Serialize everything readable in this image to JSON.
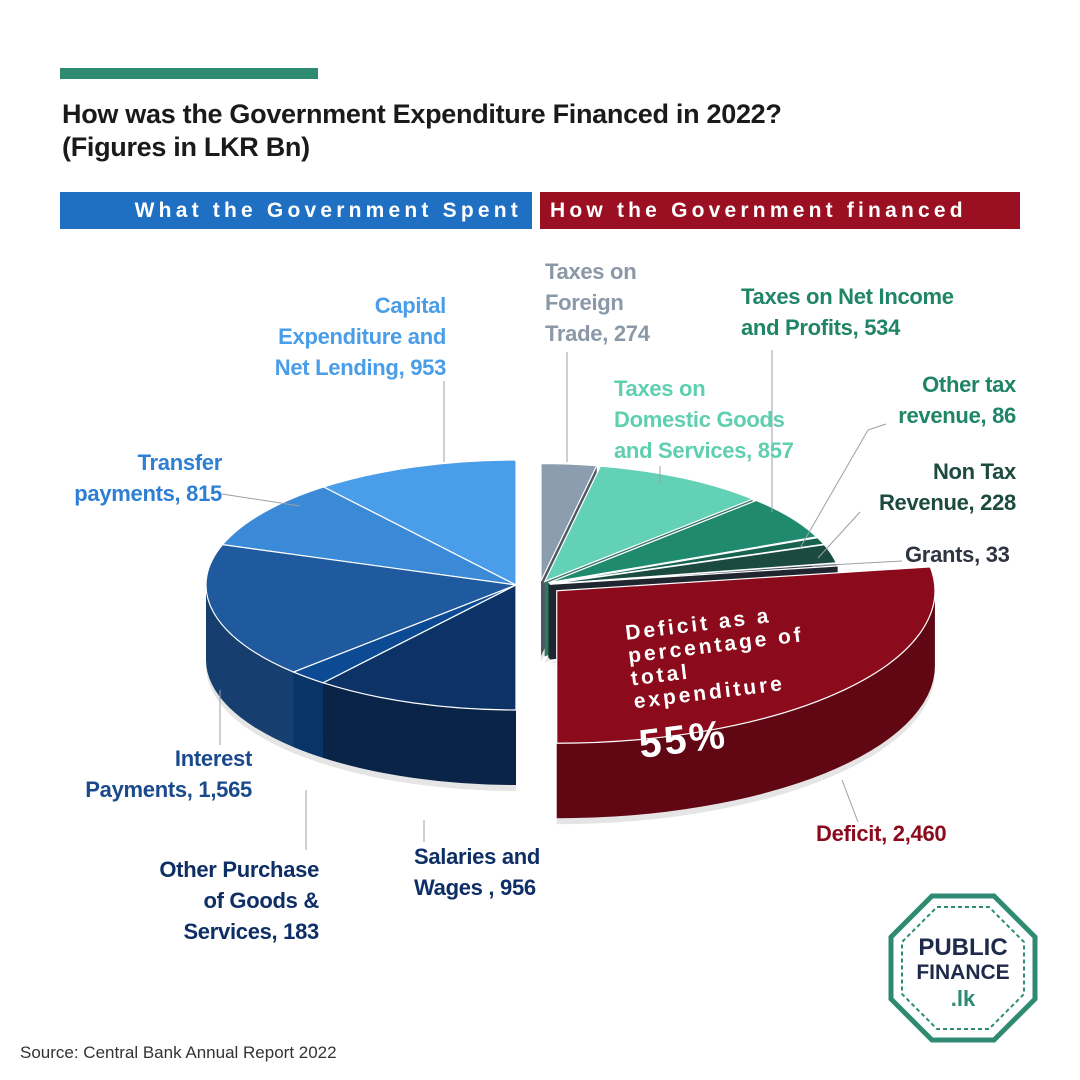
{
  "header": {
    "title_line1": "How was the Government Expenditure Financed in 2022?",
    "title_line2": "(Figures in LKR Bn)"
  },
  "bands": {
    "spent": "What the Government Spent",
    "financed": "How the Government financed"
  },
  "colors": {
    "accent": "#2e8b72",
    "spent_band": "#1f6fc2",
    "financed_band": "#9a0f22"
  },
  "chart_data": {
    "type": "pie",
    "title": "How was the Government Expenditure Financed in 2022?",
    "subtitle": "(Figures in LKR Bn)",
    "unit": "LKR Bn",
    "groups": [
      {
        "name": "What the Government Spent",
        "slices": [
          {
            "label": "Capital Expenditure and Net Lending",
            "value": 953,
            "color": "#4a9de8"
          },
          {
            "label": "Transfer payments",
            "value": 815,
            "color": "#3a8ad8"
          },
          {
            "label": "Interest Payments",
            "value": 1565,
            "color": "#1f5a9e"
          },
          {
            "label": "Other Purchase of Goods & Services",
            "value": 183,
            "color": "#0d4a94"
          },
          {
            "label": "Salaries and Wages",
            "value": 956,
            "color": "#0d3366"
          }
        ]
      },
      {
        "name": "How the Government financed",
        "slices": [
          {
            "label": "Taxes on Foreign Trade",
            "value": 274,
            "color": "#8c9db0"
          },
          {
            "label": "Taxes on Domestic Goods and Services",
            "value": 857,
            "color": "#63d1b6"
          },
          {
            "label": "Taxes on Net Income and Profits",
            "value": 534,
            "color": "#1f8a6d"
          },
          {
            "label": "Other tax revenue",
            "value": 86,
            "color": "#17634f"
          },
          {
            "label": "Non Tax Revenue",
            "value": 228,
            "color": "#1a4a40"
          },
          {
            "label": "Grants",
            "value": 33,
            "color": "#3a4556"
          },
          {
            "label": "Deficit",
            "value": 2460,
            "color": "#8b0a1c"
          }
        ]
      }
    ]
  },
  "labels": {
    "capital": [
      "Capital",
      "Expenditure and",
      "Net Lending, 953"
    ],
    "transfer": [
      "Transfer",
      "payments, 815"
    ],
    "interest": [
      "Interest",
      "Payments, 1,565"
    ],
    "other_purchase": [
      "Other Purchase",
      "of Goods &",
      "Services, 183"
    ],
    "salaries": [
      "Salaries and",
      "Wages , 956"
    ],
    "foreign_trade": [
      "Taxes on",
      "Foreign",
      "Trade, 274"
    ],
    "net_income": [
      "Taxes on Net Income",
      "and Profits, 534"
    ],
    "domestic": [
      "Taxes on",
      "Domestic Goods",
      "and Services, 857"
    ],
    "other_tax": [
      "Other tax",
      "revenue, 86"
    ],
    "non_tax": [
      "Non Tax",
      "Revenue, 228"
    ],
    "grants": [
      "Grants, 33"
    ],
    "deficit": [
      "Deficit, 2,460"
    ]
  },
  "callout": {
    "lines": [
      "Deficit as a",
      "percentage of",
      "total",
      "expenditure"
    ],
    "percent": "55%"
  },
  "source": "Source: Central Bank Annual Report 2022",
  "logo": {
    "line1": "PUBLIC",
    "line2": "FINANCE",
    "line3": ".lk",
    "color": "#2e8b72",
    "text_color": "#1e2a4a"
  }
}
